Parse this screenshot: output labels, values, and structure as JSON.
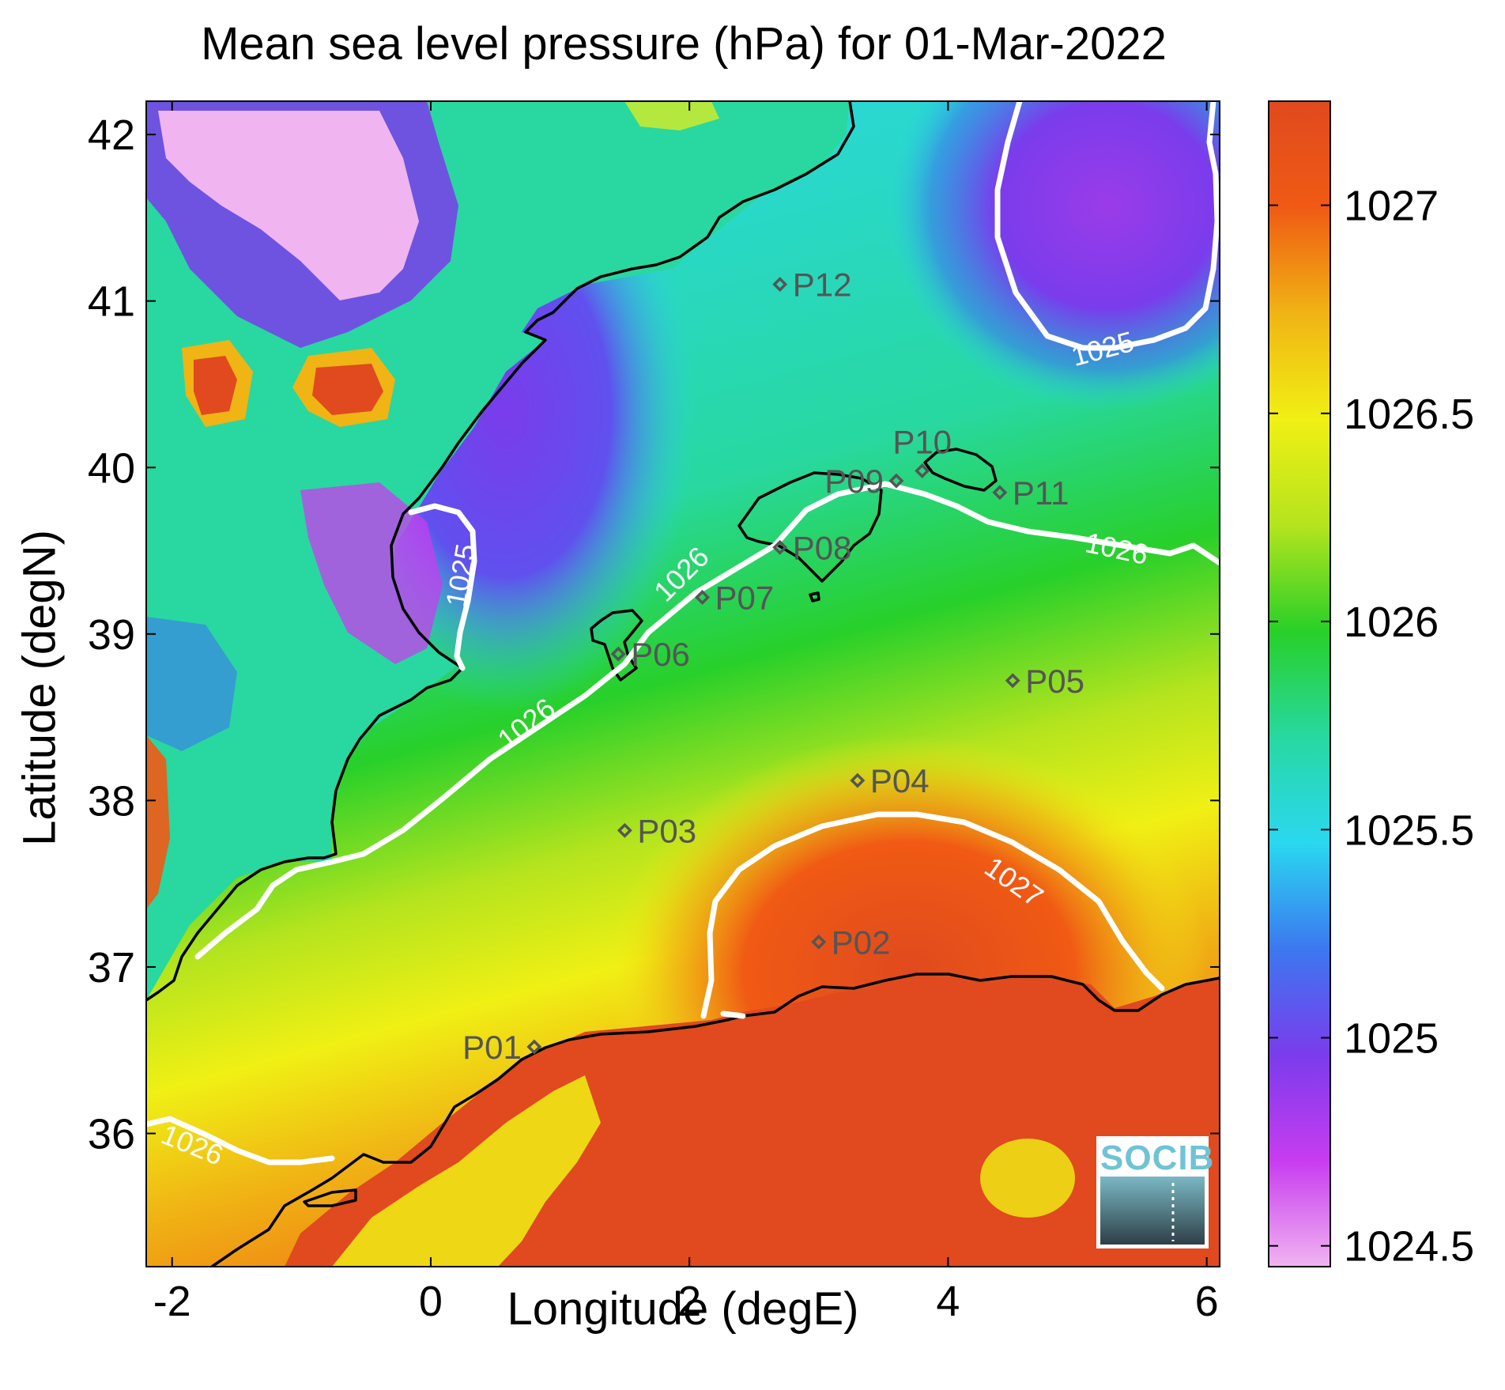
{
  "title": "Mean sea level pressure (hPa) for 01-Mar-2022",
  "xlabel": "Longitude (degE)",
  "ylabel": "Latitude (degN)",
  "x_ticks": [
    -2,
    0,
    2,
    4,
    6
  ],
  "y_ticks": [
    36,
    37,
    38,
    39,
    40,
    41,
    42
  ],
  "xlim": [
    -2.2,
    6.1
  ],
  "ylim": [
    35.2,
    42.2
  ],
  "colorbar": {
    "range": [
      1024.45,
      1027.25
    ],
    "ticks": [
      "1024.5",
      "1025",
      "1025.5",
      "1026",
      "1026.5",
      "1027"
    ],
    "colors": [
      "#f0b4f0",
      "#c83cf0",
      "#7a3cec",
      "#3c78f0",
      "#2ad8f0",
      "#28d8a0",
      "#28d028",
      "#b4e41e",
      "#f0f014",
      "#f0b414",
      "#f05a14",
      "#e04a1e"
    ]
  },
  "contour_labels": [
    {
      "text": "1025",
      "lon": 5.2,
      "lat": 40.7,
      "angle": -15
    },
    {
      "text": "1025",
      "lon": 0.25,
      "lat": 39.35,
      "angle": -80
    },
    {
      "text": "1026",
      "lon": 1.95,
      "lat": 39.35,
      "angle": -45
    },
    {
      "text": "1026",
      "lon": 0.75,
      "lat": 38.45,
      "angle": -38
    },
    {
      "text": "1026",
      "lon": 5.3,
      "lat": 39.5,
      "angle": 12
    },
    {
      "text": "1026",
      "lon": -1.85,
      "lat": 35.92,
      "angle": 22
    },
    {
      "text": "1027",
      "lon": 4.5,
      "lat": 37.5,
      "angle": 35
    }
  ],
  "points": [
    {
      "name": "P01",
      "lon": 0.8,
      "lat": 36.52,
      "label_side": "left"
    },
    {
      "name": "P02",
      "lon": 3.0,
      "lat": 37.15,
      "label_side": "right"
    },
    {
      "name": "P03",
      "lon": 1.5,
      "lat": 37.82,
      "label_side": "right"
    },
    {
      "name": "P04",
      "lon": 3.3,
      "lat": 38.12,
      "label_side": "right"
    },
    {
      "name": "P05",
      "lon": 4.5,
      "lat": 38.72,
      "label_side": "right"
    },
    {
      "name": "P06",
      "lon": 1.45,
      "lat": 38.88,
      "label_side": "right"
    },
    {
      "name": "P07",
      "lon": 2.1,
      "lat": 39.22,
      "label_side": "right"
    },
    {
      "name": "P08",
      "lon": 2.7,
      "lat": 39.52,
      "label_side": "right"
    },
    {
      "name": "P09",
      "lon": 3.6,
      "lat": 39.92,
      "label_side": "left"
    },
    {
      "name": "P10",
      "lon": 3.8,
      "lat": 39.98,
      "label_side": "above"
    },
    {
      "name": "P11",
      "lon": 4.4,
      "lat": 39.85,
      "label_side": "right"
    },
    {
      "name": "P12",
      "lon": 2.7,
      "lat": 41.1,
      "label_side": "right"
    }
  ],
  "logo": {
    "text": "SOCIB"
  },
  "colors": {
    "coast": "#000000",
    "contour": "#ffffff",
    "station": "#555555"
  }
}
